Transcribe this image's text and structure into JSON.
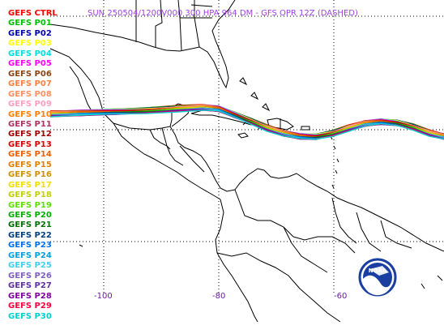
{
  "title": "SUN 250504/1200V000  300 HPA 964 DM - GFS OPR 12Z (DASHED)",
  "lon_ticks": [
    "-100",
    "-80",
    "-60"
  ],
  "logo_text": "NOAA",
  "members": [
    {
      "label": "GEFS CTRL",
      "color": "#ff0000"
    },
    {
      "label": "GEFS P01",
      "color": "#00c000"
    },
    {
      "label": "GEFS P02",
      "color": "#0000b0"
    },
    {
      "label": "GEFS P03",
      "color": "#ffff00"
    },
    {
      "label": "GEFS P04",
      "color": "#00e0e0"
    },
    {
      "label": "GEFS P05",
      "color": "#ff00ff"
    },
    {
      "label": "GEFS P06",
      "color": "#8b4513"
    },
    {
      "label": "GEFS P07",
      "color": "#ff8040"
    },
    {
      "label": "GEFS P08",
      "color": "#ff9060"
    },
    {
      "label": "GEFS P09",
      "color": "#ffa0c0"
    },
    {
      "label": "GEFS P10",
      "color": "#ff7f00"
    },
    {
      "label": "GEFS P11",
      "color": "#b03060"
    },
    {
      "label": "GEFS P12",
      "color": "#a00000"
    },
    {
      "label": "GEFS P13",
      "color": "#e00000"
    },
    {
      "label": "GEFS P14",
      "color": "#f06000"
    },
    {
      "label": "GEFS P15",
      "color": "#e08000"
    },
    {
      "label": "GEFS P16",
      "color": "#d09000"
    },
    {
      "label": "GEFS P17",
      "color": "#f0e000"
    },
    {
      "label": "GEFS P18",
      "color": "#c0d000"
    },
    {
      "label": "GEFS P19",
      "color": "#60e000"
    },
    {
      "label": "GEFS P20",
      "color": "#00b000"
    },
    {
      "label": "GEFS P21",
      "color": "#007000"
    },
    {
      "label": "GEFS P22",
      "color": "#004080"
    },
    {
      "label": "GEFS P23",
      "color": "#0070f0"
    },
    {
      "label": "GEFS P24",
      "color": "#00a0e0"
    },
    {
      "label": "GEFS P25",
      "color": "#40d0f0"
    },
    {
      "label": "GEFS P26",
      "color": "#8060c0"
    },
    {
      "label": "GEFS P27",
      "color": "#6030a0"
    },
    {
      "label": "GEFS P28",
      "color": "#8000a0"
    },
    {
      "label": "GEFS P29",
      "color": "#ff0040"
    },
    {
      "label": "GEFS P30",
      "color": "#00d0d0"
    }
  ]
}
